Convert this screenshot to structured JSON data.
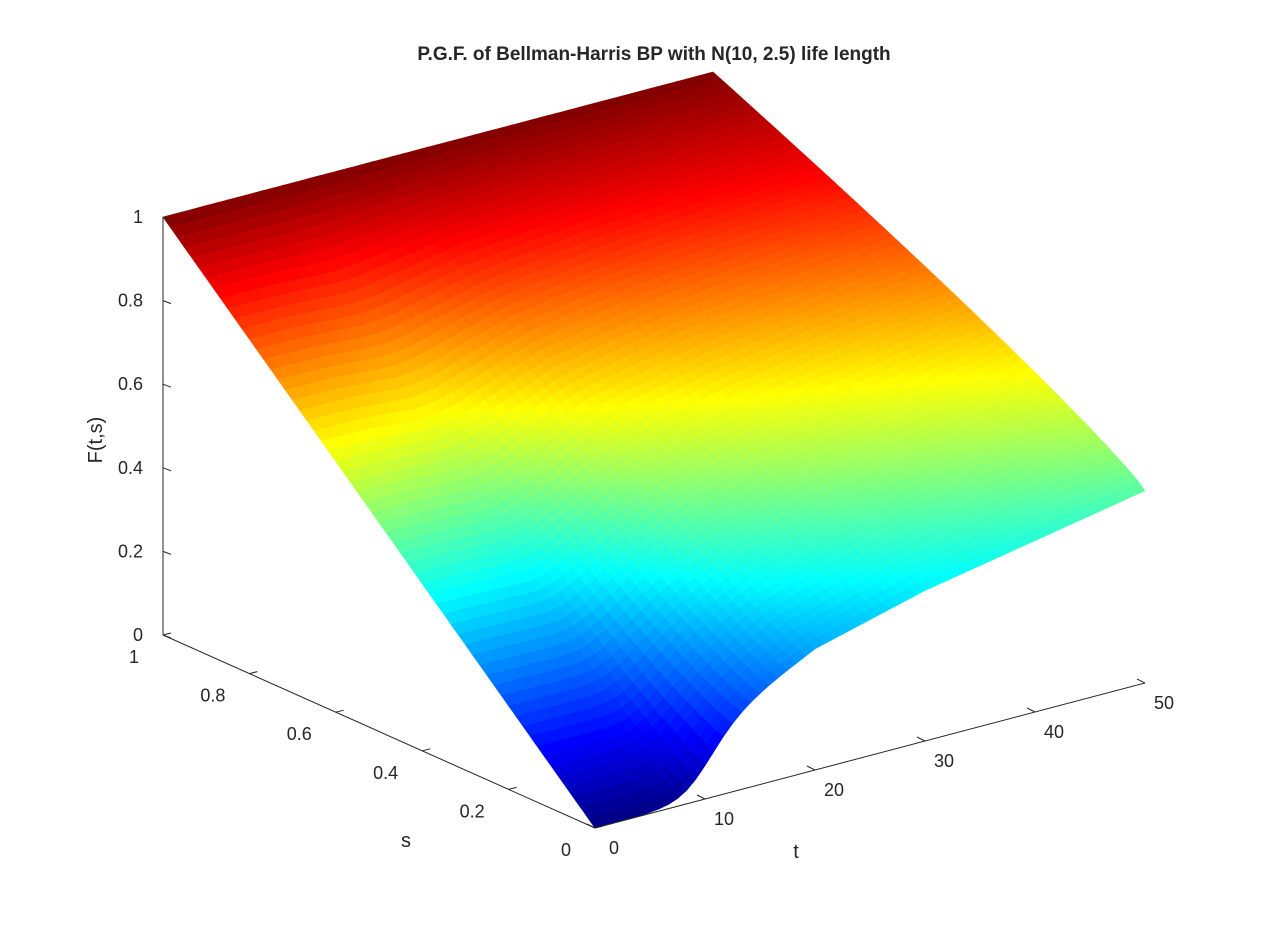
{
  "chart_data": {
    "type": "surface",
    "title": "P.G.F. of Bellman-Harris BP with N(10, 2.5) life length",
    "xlabel": "t",
    "ylabel": "s",
    "zlabel": "F(t,s)",
    "x_range": [
      0,
      50
    ],
    "y_range": [
      0,
      1
    ],
    "z_range": [
      0,
      1
    ],
    "x_ticks": [
      "0",
      "10",
      "20",
      "30",
      "40",
      "50"
    ],
    "y_ticks": [
      "0",
      "0.2",
      "0.4",
      "0.6",
      "0.8",
      "1"
    ],
    "z_ticks": [
      "0",
      "0.2",
      "0.4",
      "0.6",
      "0.8",
      "1"
    ],
    "colormap": "jet",
    "grid": false,
    "surface_samples": {
      "description_t": [
        0,
        10,
        20,
        30,
        40,
        50
      ],
      "F_at_s0": [
        0.0,
        0.16,
        0.29,
        0.36,
        0.41,
        0.46
      ],
      "F_at_s1": [
        1.0,
        1.0,
        1.0,
        1.0,
        1.0,
        1.0
      ]
    },
    "colors": {
      "jet_low": "#00008f",
      "jet_mid": "#80ff80",
      "jet_high": "#800000"
    }
  }
}
